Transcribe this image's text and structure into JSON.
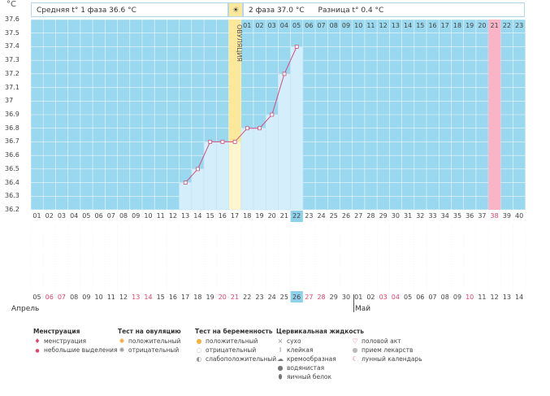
{
  "header": {
    "unit": "°C",
    "phase1": "Средняя t° 1 фаза 36.6 °C",
    "phase2": "2 фаза 37.0 °C",
    "diff": "Разница t° 0.4 °C",
    "sun_icon": "sun-icon"
  },
  "chart_data": {
    "type": "line",
    "y_ticks": [
      "37.6",
      "37.5",
      "37.4",
      "37.3",
      "37.2",
      "37.1",
      "37",
      "36.9",
      "36.8",
      "36.7",
      "36.6",
      "36.5",
      "36.4",
      "36.3",
      "36.2"
    ],
    "ylim": [
      36.2,
      37.6
    ],
    "cycle_days": [
      "01",
      "02",
      "03",
      "04",
      "05",
      "06",
      "07",
      "08",
      "09",
      "10",
      "11",
      "12",
      "13",
      "14",
      "15",
      "16",
      "17",
      "18",
      "19",
      "20",
      "21",
      "22",
      "23",
      "24",
      "25",
      "26",
      "27",
      "28",
      "29",
      "30",
      "31",
      "32",
      "33",
      "34",
      "35",
      "36",
      "37",
      "38",
      "39",
      "40"
    ],
    "phase2_days": [
      "01",
      "02",
      "03",
      "04",
      "05",
      "06",
      "07",
      "08",
      "09",
      "10",
      "11",
      "12",
      "13",
      "14",
      "15",
      "16",
      "17",
      "18",
      "19",
      "20",
      "21",
      "22",
      "23"
    ],
    "ovulation_label": "ОВУЛЯЦИЯ",
    "ovulation_day": 17,
    "highlight_day": 22,
    "pink_day": 38,
    "series": [
      {
        "points": [
          [
            13,
            36.4
          ],
          [
            14,
            36.5
          ],
          [
            15,
            36.7
          ],
          [
            16,
            36.7
          ],
          [
            17,
            36.7
          ],
          [
            18,
            36.8
          ],
          [
            19,
            36.8
          ],
          [
            20,
            36.9
          ],
          [
            21,
            37.2
          ],
          [
            22,
            37.4
          ]
        ]
      }
    ],
    "colors": {
      "bg": "#99d8ef",
      "grid": "#ffffff",
      "bar": "#d4eefb",
      "line": "#d04f7d",
      "ovulation": "#fce89a",
      "pink": "#f9b4c6",
      "highlight": "#8fd0ea"
    }
  },
  "calendar": {
    "dates": [
      "05",
      "06",
      "07",
      "08",
      "09",
      "10",
      "11",
      "12",
      "13",
      "14",
      "15",
      "16",
      "17",
      "18",
      "19",
      "20",
      "21",
      "22",
      "23",
      "24",
      "25",
      "26",
      "27",
      "28",
      "29",
      "30",
      "01",
      "02",
      "03",
      "04",
      "05",
      "06",
      "07",
      "08",
      "09",
      "10",
      "11",
      "12",
      "13",
      "14"
    ],
    "red_dates_idx": [
      1,
      2,
      8,
      9,
      15,
      16,
      22,
      23,
      28,
      29,
      35
    ],
    "month_april": "Апрель",
    "month_may": "Май"
  },
  "legend": {
    "menstruation": {
      "title": "Менструация",
      "items": [
        "менструация",
        "небольшие выделения"
      ]
    },
    "ovulation_test": {
      "title": "Тест на овуляцию",
      "items": [
        "положительный",
        "отрицательный"
      ]
    },
    "pregnancy_test": {
      "title": "Тест на беременность",
      "items": [
        "положительный",
        "отрицательный",
        "слабоположительный"
      ]
    },
    "cervical": {
      "title": "Цервикальная жидкость",
      "items": [
        "сухо",
        "клейкая",
        "кремообразная",
        "водянистая",
        "яичный белок"
      ]
    },
    "other": {
      "items": [
        "половой акт",
        "прием лекарств",
        "лунный календарь"
      ]
    }
  }
}
